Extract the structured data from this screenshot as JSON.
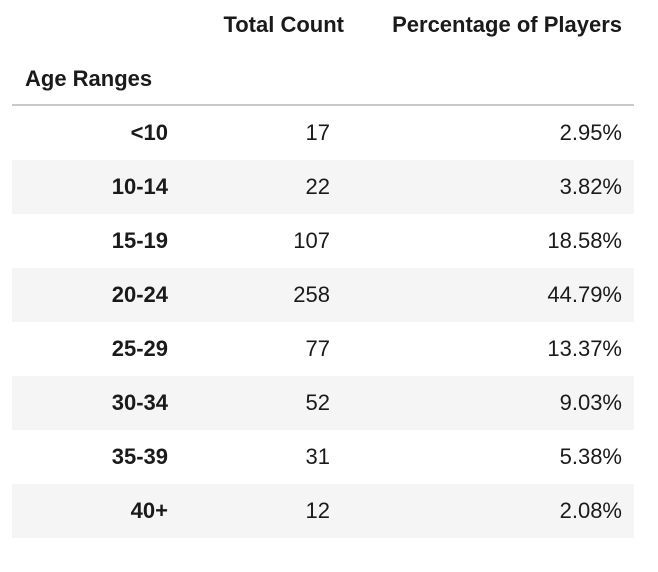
{
  "table": {
    "columns": [
      "Total Count",
      "Percentage of Players"
    ],
    "index_name": "Age Ranges",
    "rows": [
      {
        "index": "<10",
        "count": "17",
        "pct": "2.95%"
      },
      {
        "index": "10-14",
        "count": "22",
        "pct": "3.82%"
      },
      {
        "index": "15-19",
        "count": "107",
        "pct": "18.58%"
      },
      {
        "index": "20-24",
        "count": "258",
        "pct": "44.79%"
      },
      {
        "index": "25-29",
        "count": "77",
        "pct": "13.37%"
      },
      {
        "index": "30-34",
        "count": "52",
        "pct": "9.03%"
      },
      {
        "index": "35-39",
        "count": "31",
        "pct": "5.38%"
      },
      {
        "index": "40+",
        "count": "12",
        "pct": "2.08%"
      }
    ]
  },
  "colors": {
    "stripe": "#f5f5f5",
    "rule": "#c8c8c8",
    "text": "#1a1a1a"
  }
}
